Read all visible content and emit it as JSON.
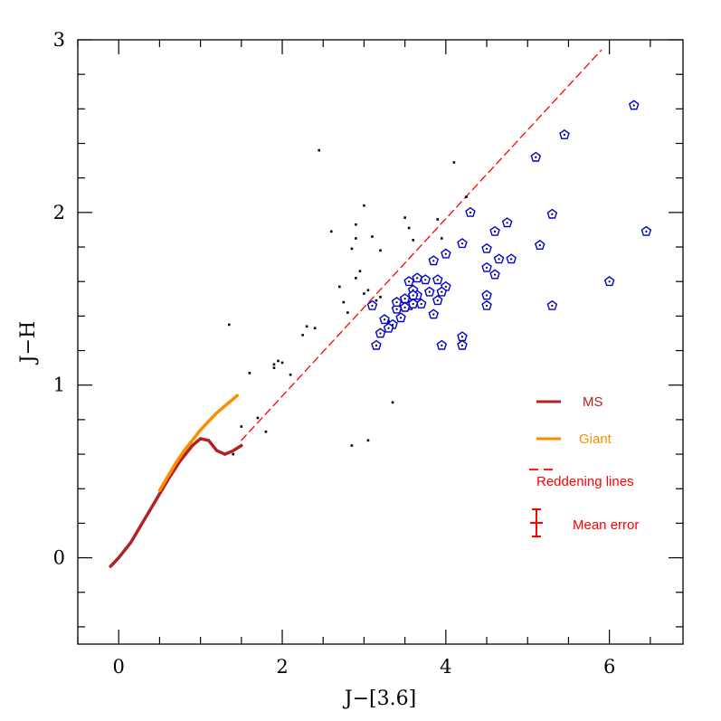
{
  "chart_data": {
    "type": "scatter",
    "xlabel": "J−[3.6]",
    "ylabel": "J−H",
    "xlim": [
      -0.5,
      6.9
    ],
    "ylim": [
      -0.5,
      3.0
    ],
    "xticks": [
      0,
      2,
      4,
      6
    ],
    "xtick_labels": [
      "0",
      "2",
      "4",
      "6"
    ],
    "yticks": [
      0,
      1,
      2,
      3
    ],
    "ytick_labels": [
      "0",
      "1",
      "2",
      "3"
    ],
    "x_minor_step": 0.5,
    "y_minor_step": 0.2,
    "grid": false,
    "legend_position": "right",
    "colors": {
      "ms": "#b22222",
      "giant": "#ff8c00",
      "reddening": "#ff0000",
      "error": "#ff0000",
      "highlight": "#0000cc",
      "points": "#000000"
    },
    "series": [
      {
        "name": "MS",
        "kind": "line",
        "x": [
          -0.1,
          0.0,
          0.15,
          0.3,
          0.45,
          0.6,
          0.75,
          0.9,
          1.0,
          1.1,
          1.2,
          1.3,
          1.4,
          1.5
        ],
        "y": [
          -0.05,
          0.0,
          0.09,
          0.21,
          0.33,
          0.45,
          0.56,
          0.65,
          0.69,
          0.68,
          0.62,
          0.6,
          0.62,
          0.65
        ]
      },
      {
        "name": "Giant",
        "kind": "line",
        "x": [
          0.5,
          0.6,
          0.7,
          0.8,
          0.9,
          1.0,
          1.1,
          1.2,
          1.3,
          1.4,
          1.45
        ],
        "y": [
          0.39,
          0.47,
          0.55,
          0.62,
          0.68,
          0.74,
          0.79,
          0.84,
          0.88,
          0.92,
          0.94
        ]
      },
      {
        "name": "Reddening lines",
        "kind": "dashed-line",
        "x": [
          1.5,
          5.9
        ],
        "y": [
          0.68,
          2.94
        ]
      },
      {
        "kind": "scatter",
        "marker": "dot",
        "x": [
          2.45,
          4.1,
          4.25,
          3.0,
          2.9,
          3.1,
          2.9,
          3.5,
          3.55,
          2.6,
          2.85,
          3.2,
          3.9,
          3.95,
          2.95,
          3.05,
          2.7,
          3.85,
          2.3,
          2.1,
          1.9,
          1.95,
          2.25,
          2.4,
          2.8,
          3.3,
          3.2,
          1.35,
          1.6,
          1.9,
          2.0,
          1.7,
          1.5,
          1.8,
          1.4,
          2.85,
          3.05,
          3.35,
          2.9,
          3.15,
          3.6,
          2.75,
          3.0
        ],
        "y": [
          2.36,
          2.29,
          2.09,
          2.04,
          1.93,
          1.86,
          1.85,
          1.97,
          1.91,
          1.89,
          1.79,
          1.78,
          1.96,
          1.85,
          1.66,
          1.55,
          1.57,
          1.74,
          1.34,
          1.06,
          1.12,
          1.14,
          1.29,
          1.33,
          1.42,
          1.37,
          1.51,
          1.35,
          1.07,
          1.1,
          1.13,
          0.81,
          0.76,
          0.73,
          0.6,
          0.65,
          0.68,
          0.9,
          1.62,
          1.49,
          1.84,
          1.48,
          1.53
        ]
      },
      {
        "kind": "scatter",
        "marker": "pentagon",
        "x": [
          6.3,
          5.45,
          5.1,
          6.45,
          5.3,
          5.15,
          4.3,
          4.75,
          4.6,
          4.2,
          4.5,
          4.5,
          4.6,
          4.65,
          4.8,
          4.5,
          4.5,
          4.0,
          4.0,
          3.85,
          3.9,
          3.95,
          3.75,
          3.65,
          3.55,
          3.6,
          3.65,
          3.7,
          3.6,
          3.55,
          3.5,
          3.45,
          3.4,
          3.4,
          3.35,
          3.3,
          3.25,
          3.2,
          3.15,
          3.1,
          3.5,
          3.6,
          3.85,
          3.8,
          3.9,
          4.2,
          3.95,
          4.2,
          6.0,
          5.3
        ],
        "y": [
          2.62,
          2.45,
          2.32,
          1.89,
          1.99,
          1.81,
          2.0,
          1.94,
          1.89,
          1.82,
          1.79,
          1.68,
          1.64,
          1.73,
          1.73,
          1.52,
          1.46,
          1.76,
          1.57,
          1.72,
          1.61,
          1.54,
          1.61,
          1.62,
          1.6,
          1.55,
          1.52,
          1.47,
          1.52,
          1.46,
          1.45,
          1.39,
          1.44,
          1.48,
          1.35,
          1.33,
          1.38,
          1.3,
          1.23,
          1.46,
          1.5,
          1.47,
          1.41,
          1.54,
          1.49,
          1.28,
          1.23,
          1.23,
          1.6,
          1.46
        ]
      }
    ],
    "legend": [
      {
        "label": "MS",
        "style": "solid",
        "color": "#b22222"
      },
      {
        "label": "Giant",
        "style": "solid",
        "color": "#ff8c00"
      },
      {
        "label": "Reddening lines",
        "style": "dashed",
        "color": "#ff0000"
      },
      {
        "label": "Mean error",
        "style": "errorbar",
        "color": "#ff0000"
      }
    ]
  }
}
